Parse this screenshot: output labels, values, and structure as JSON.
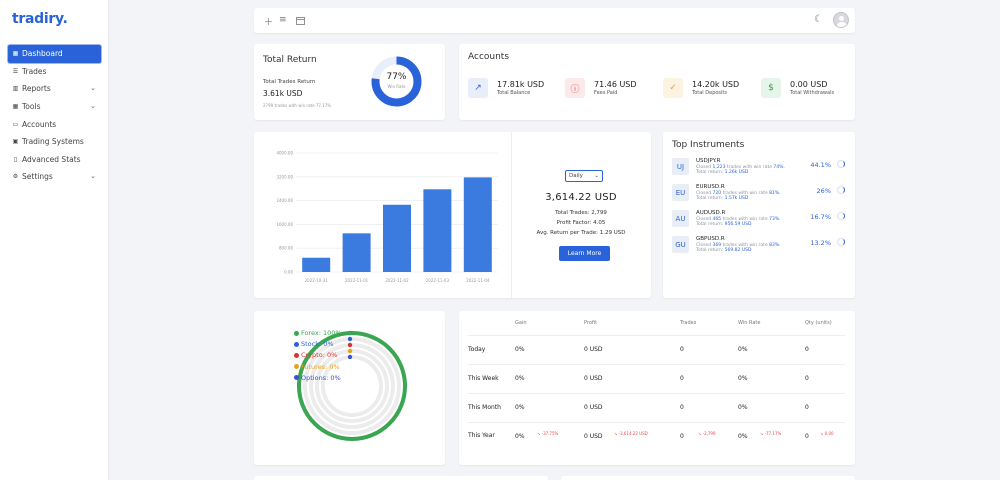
{
  "app": {
    "name": "tradiry."
  },
  "colors": {
    "brand": "#2a63d9",
    "green": "#2e9e4d",
    "red": "#e44b4b",
    "bar": "#3b7be0"
  },
  "sidebar": {
    "items": [
      {
        "label": "Dashboard",
        "icon": "dashboard-icon",
        "active": true
      },
      {
        "label": "Trades",
        "icon": "list-icon"
      },
      {
        "label": "Reports",
        "icon": "chart-icon",
        "expandable": true
      },
      {
        "label": "Tools",
        "icon": "grid-icon",
        "expandable": true
      },
      {
        "label": "Accounts",
        "icon": "wallet-icon"
      },
      {
        "label": "Trading Systems",
        "icon": "system-icon"
      },
      {
        "label": "Advanced Stats",
        "icon": "book-icon"
      },
      {
        "label": "Settings",
        "icon": "gear-icon",
        "expandable": true
      }
    ]
  },
  "toolbar": {
    "icons": [
      "plus-icon",
      "filter-icon",
      "calendar-icon",
      "moon-icon",
      "avatar"
    ]
  },
  "total_return": {
    "title": "Total Return",
    "label": "Total Trades Return",
    "value": "3.61k USD",
    "note": "2799 trades with win rate 77.17%",
    "win_rate_pct": "77%",
    "win_rate_label": "Win Rate",
    "win_rate_fraction": 0.77
  },
  "accounts": {
    "title": "Accounts",
    "items": [
      {
        "value": "17.81k USD",
        "label": "Total Balance",
        "icon": "trend-up-icon"
      },
      {
        "value": "71.46 USD",
        "label": "Fees Paid",
        "icon": "alert-icon"
      },
      {
        "value": "14.20k USD",
        "label": "Total Deposits",
        "icon": "check-icon"
      },
      {
        "value": "0.00 USD",
        "label": "Total Withdrawals",
        "icon": "dollar-icon"
      }
    ]
  },
  "chart_data": {
    "type": "bar",
    "categories": [
      "2022-10-31",
      "2022-11-01",
      "2022-11-02",
      "2022-11-03",
      "2022-11-04"
    ],
    "values": [
      480,
      1300,
      2260,
      2780,
      3180
    ],
    "yticks": [
      "4000.00",
      "3200.00",
      "2400.00",
      "1600.00",
      "800.00",
      "0.00"
    ],
    "ylim": [
      0,
      4000
    ],
    "grid": true
  },
  "summary": {
    "period": "Daily",
    "value": "3,614.22 USD",
    "total_trades_label": "Total Trades:",
    "total_trades": "2,799",
    "profit_factor_label": "Profit Factor:",
    "profit_factor": "4.05",
    "avg_return_label": "Avg. Return per Trade:",
    "avg_return": "1.29 USD",
    "button": "Learn More"
  },
  "top_instruments": {
    "title": "Top Instruments",
    "items": [
      {
        "badge": "UJ",
        "name": "USDJPY.R",
        "closed": "1,223",
        "win_rate": "74%",
        "return": "1.26k USD",
        "pct": "44.1%"
      },
      {
        "badge": "EU",
        "name": "EURUSD.R",
        "closed": "720",
        "win_rate": "81%",
        "return": "1.57k USD",
        "pct": "26%"
      },
      {
        "badge": "AU",
        "name": "AUDUSD.R",
        "closed": "465",
        "win_rate": "73%",
        "return": "956.59 USD",
        "pct": "16.7%"
      },
      {
        "badge": "GU",
        "name": "GBPUSD.R",
        "closed": "369",
        "win_rate": "83%",
        "return": "569.82 USD",
        "pct": "13.2%"
      }
    ],
    "closed_prefix": "Closed",
    "mid_text": "trades with win rate",
    "return_prefix": "Total return:"
  },
  "allocation": {
    "items": [
      {
        "label": "Forex: 100%",
        "color": "#3aa652",
        "value": 1.0
      },
      {
        "label": "Stock: 0%",
        "color": "#2a63d9",
        "value": 0
      },
      {
        "label": "Crypto: 0%",
        "color": "#d9342b",
        "value": 0
      },
      {
        "label": "Futures: 0%",
        "color": "#e8a321",
        "value": 0
      },
      {
        "label": "Options: 0%",
        "color": "#3a55c9",
        "value": 0
      }
    ]
  },
  "period_table": {
    "headers": [
      "Gain",
      "Profit",
      "Trades",
      "Win Rate",
      "Qty (units)"
    ],
    "rows": [
      {
        "label": "Today",
        "gain": "0%",
        "profit": "0 USD",
        "trades": "0",
        "win_rate": "0%",
        "qty": "0"
      },
      {
        "label": "This Week",
        "gain": "0%",
        "profit": "0 USD",
        "trades": "0",
        "win_rate": "0%",
        "qty": "0"
      },
      {
        "label": "This Month",
        "gain": "0%",
        "profit": "0 USD",
        "trades": "0",
        "win_rate": "0%",
        "qty": "0"
      },
      {
        "label": "This Year",
        "gain": "0%",
        "profit": "0 USD",
        "trades": "0",
        "win_rate": "0%",
        "qty": "0",
        "gain_delta": "-37.75%",
        "profit_delta": "-3,614.22 USD",
        "trades_delta": "-2,799",
        "win_rate_delta": "-77.17%",
        "qty_delta": "0.00"
      }
    ]
  }
}
